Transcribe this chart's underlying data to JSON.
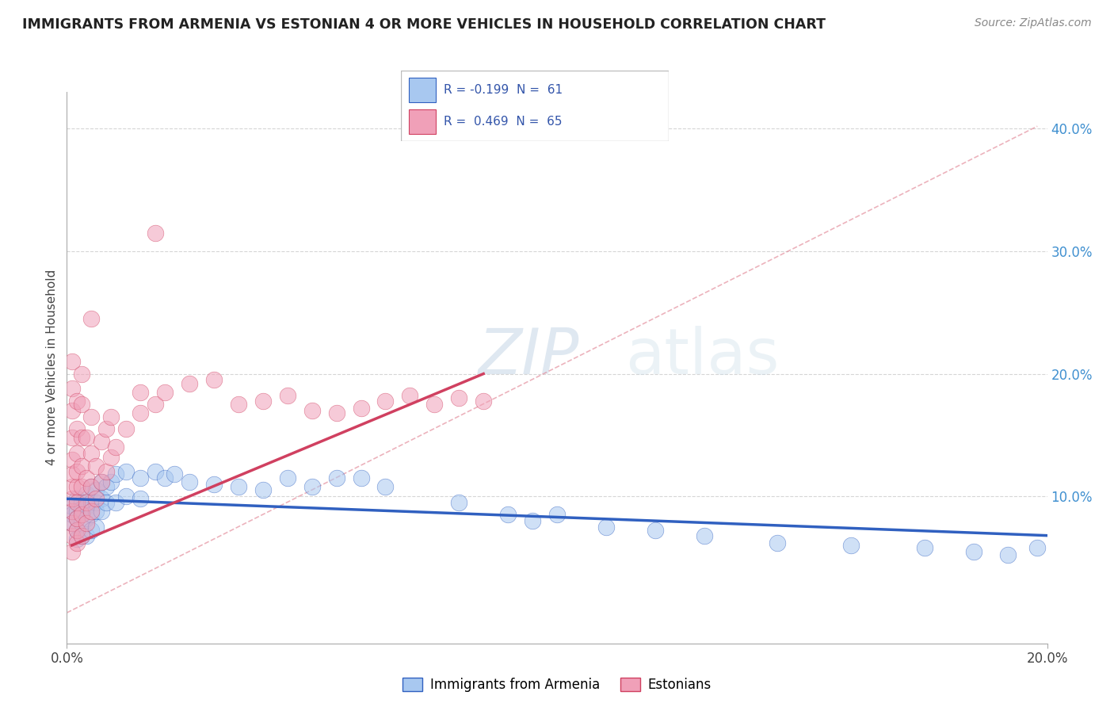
{
  "title": "IMMIGRANTS FROM ARMENIA VS ESTONIAN 4 OR MORE VEHICLES IN HOUSEHOLD CORRELATION CHART",
  "source": "Source: ZipAtlas.com",
  "ylabel": "4 or more Vehicles in Household",
  "xlim": [
    0.0,
    0.2
  ],
  "ylim": [
    -0.02,
    0.43
  ],
  "color_blue": "#a8c8f0",
  "color_pink": "#f0a0b8",
  "line_blue": "#3060c0",
  "line_pink": "#d04060",
  "dashed_color": "#e08090",
  "grid_color": "#cccccc",
  "right_tick_color": "#4090d0",
  "watermark_color": "#c8d8e8",
  "scatter_blue": [
    [
      0.001,
      0.092
    ],
    [
      0.001,
      0.085
    ],
    [
      0.001,
      0.078
    ],
    [
      0.002,
      0.098
    ],
    [
      0.002,
      0.088
    ],
    [
      0.002,
      0.082
    ],
    [
      0.002,
      0.072
    ],
    [
      0.002,
      0.065
    ],
    [
      0.003,
      0.095
    ],
    [
      0.003,
      0.09
    ],
    [
      0.003,
      0.078
    ],
    [
      0.003,
      0.068
    ],
    [
      0.004,
      0.102
    ],
    [
      0.004,
      0.092
    ],
    [
      0.004,
      0.082
    ],
    [
      0.004,
      0.068
    ],
    [
      0.005,
      0.108
    ],
    [
      0.005,
      0.095
    ],
    [
      0.005,
      0.085
    ],
    [
      0.005,
      0.072
    ],
    [
      0.006,
      0.105
    ],
    [
      0.006,
      0.095
    ],
    [
      0.006,
      0.088
    ],
    [
      0.006,
      0.075
    ],
    [
      0.007,
      0.112
    ],
    [
      0.007,
      0.098
    ],
    [
      0.007,
      0.088
    ],
    [
      0.008,
      0.108
    ],
    [
      0.008,
      0.095
    ],
    [
      0.009,
      0.112
    ],
    [
      0.01,
      0.118
    ],
    [
      0.01,
      0.095
    ],
    [
      0.012,
      0.12
    ],
    [
      0.012,
      0.1
    ],
    [
      0.015,
      0.115
    ],
    [
      0.015,
      0.098
    ],
    [
      0.018,
      0.12
    ],
    [
      0.02,
      0.115
    ],
    [
      0.022,
      0.118
    ],
    [
      0.025,
      0.112
    ],
    [
      0.03,
      0.11
    ],
    [
      0.035,
      0.108
    ],
    [
      0.04,
      0.105
    ],
    [
      0.045,
      0.115
    ],
    [
      0.05,
      0.108
    ],
    [
      0.055,
      0.115
    ],
    [
      0.06,
      0.115
    ],
    [
      0.065,
      0.108
    ],
    [
      0.08,
      0.095
    ],
    [
      0.09,
      0.085
    ],
    [
      0.095,
      0.08
    ],
    [
      0.1,
      0.085
    ],
    [
      0.11,
      0.075
    ],
    [
      0.12,
      0.072
    ],
    [
      0.13,
      0.068
    ],
    [
      0.145,
      0.062
    ],
    [
      0.16,
      0.06
    ],
    [
      0.175,
      0.058
    ],
    [
      0.185,
      0.055
    ],
    [
      0.192,
      0.052
    ],
    [
      0.198,
      0.058
    ]
  ],
  "scatter_pink": [
    [
      0.001,
      0.055
    ],
    [
      0.001,
      0.068
    ],
    [
      0.001,
      0.078
    ],
    [
      0.001,
      0.088
    ],
    [
      0.001,
      0.098
    ],
    [
      0.001,
      0.108
    ],
    [
      0.001,
      0.118
    ],
    [
      0.001,
      0.13
    ],
    [
      0.001,
      0.148
    ],
    [
      0.001,
      0.17
    ],
    [
      0.001,
      0.188
    ],
    [
      0.001,
      0.21
    ],
    [
      0.002,
      0.062
    ],
    [
      0.002,
      0.072
    ],
    [
      0.002,
      0.082
    ],
    [
      0.002,
      0.095
    ],
    [
      0.002,
      0.108
    ],
    [
      0.002,
      0.12
    ],
    [
      0.002,
      0.135
    ],
    [
      0.002,
      0.155
    ],
    [
      0.002,
      0.178
    ],
    [
      0.003,
      0.068
    ],
    [
      0.003,
      0.085
    ],
    [
      0.003,
      0.108
    ],
    [
      0.003,
      0.125
    ],
    [
      0.003,
      0.148
    ],
    [
      0.003,
      0.175
    ],
    [
      0.003,
      0.2
    ],
    [
      0.004,
      0.078
    ],
    [
      0.004,
      0.095
    ],
    [
      0.004,
      0.115
    ],
    [
      0.004,
      0.148
    ],
    [
      0.005,
      0.088
    ],
    [
      0.005,
      0.108
    ],
    [
      0.005,
      0.135
    ],
    [
      0.005,
      0.165
    ],
    [
      0.005,
      0.245
    ],
    [
      0.006,
      0.098
    ],
    [
      0.006,
      0.125
    ],
    [
      0.007,
      0.112
    ],
    [
      0.007,
      0.145
    ],
    [
      0.008,
      0.12
    ],
    [
      0.008,
      0.155
    ],
    [
      0.009,
      0.132
    ],
    [
      0.009,
      0.165
    ],
    [
      0.01,
      0.14
    ],
    [
      0.012,
      0.155
    ],
    [
      0.015,
      0.168
    ],
    [
      0.015,
      0.185
    ],
    [
      0.018,
      0.175
    ],
    [
      0.018,
      0.315
    ],
    [
      0.02,
      0.185
    ],
    [
      0.025,
      0.192
    ],
    [
      0.03,
      0.195
    ],
    [
      0.035,
      0.175
    ],
    [
      0.04,
      0.178
    ],
    [
      0.045,
      0.182
    ],
    [
      0.05,
      0.17
    ],
    [
      0.055,
      0.168
    ],
    [
      0.06,
      0.172
    ],
    [
      0.065,
      0.178
    ],
    [
      0.07,
      0.182
    ],
    [
      0.075,
      0.175
    ],
    [
      0.08,
      0.18
    ],
    [
      0.085,
      0.178
    ]
  ],
  "blue_line": [
    [
      0.0,
      0.098
    ],
    [
      0.2,
      0.068
    ]
  ],
  "pink_line": [
    [
      0.001,
      0.06
    ],
    [
      0.085,
      0.2
    ]
  ],
  "dashed_line": [
    [
      0.0,
      0.005
    ],
    [
      0.198,
      0.402
    ]
  ]
}
